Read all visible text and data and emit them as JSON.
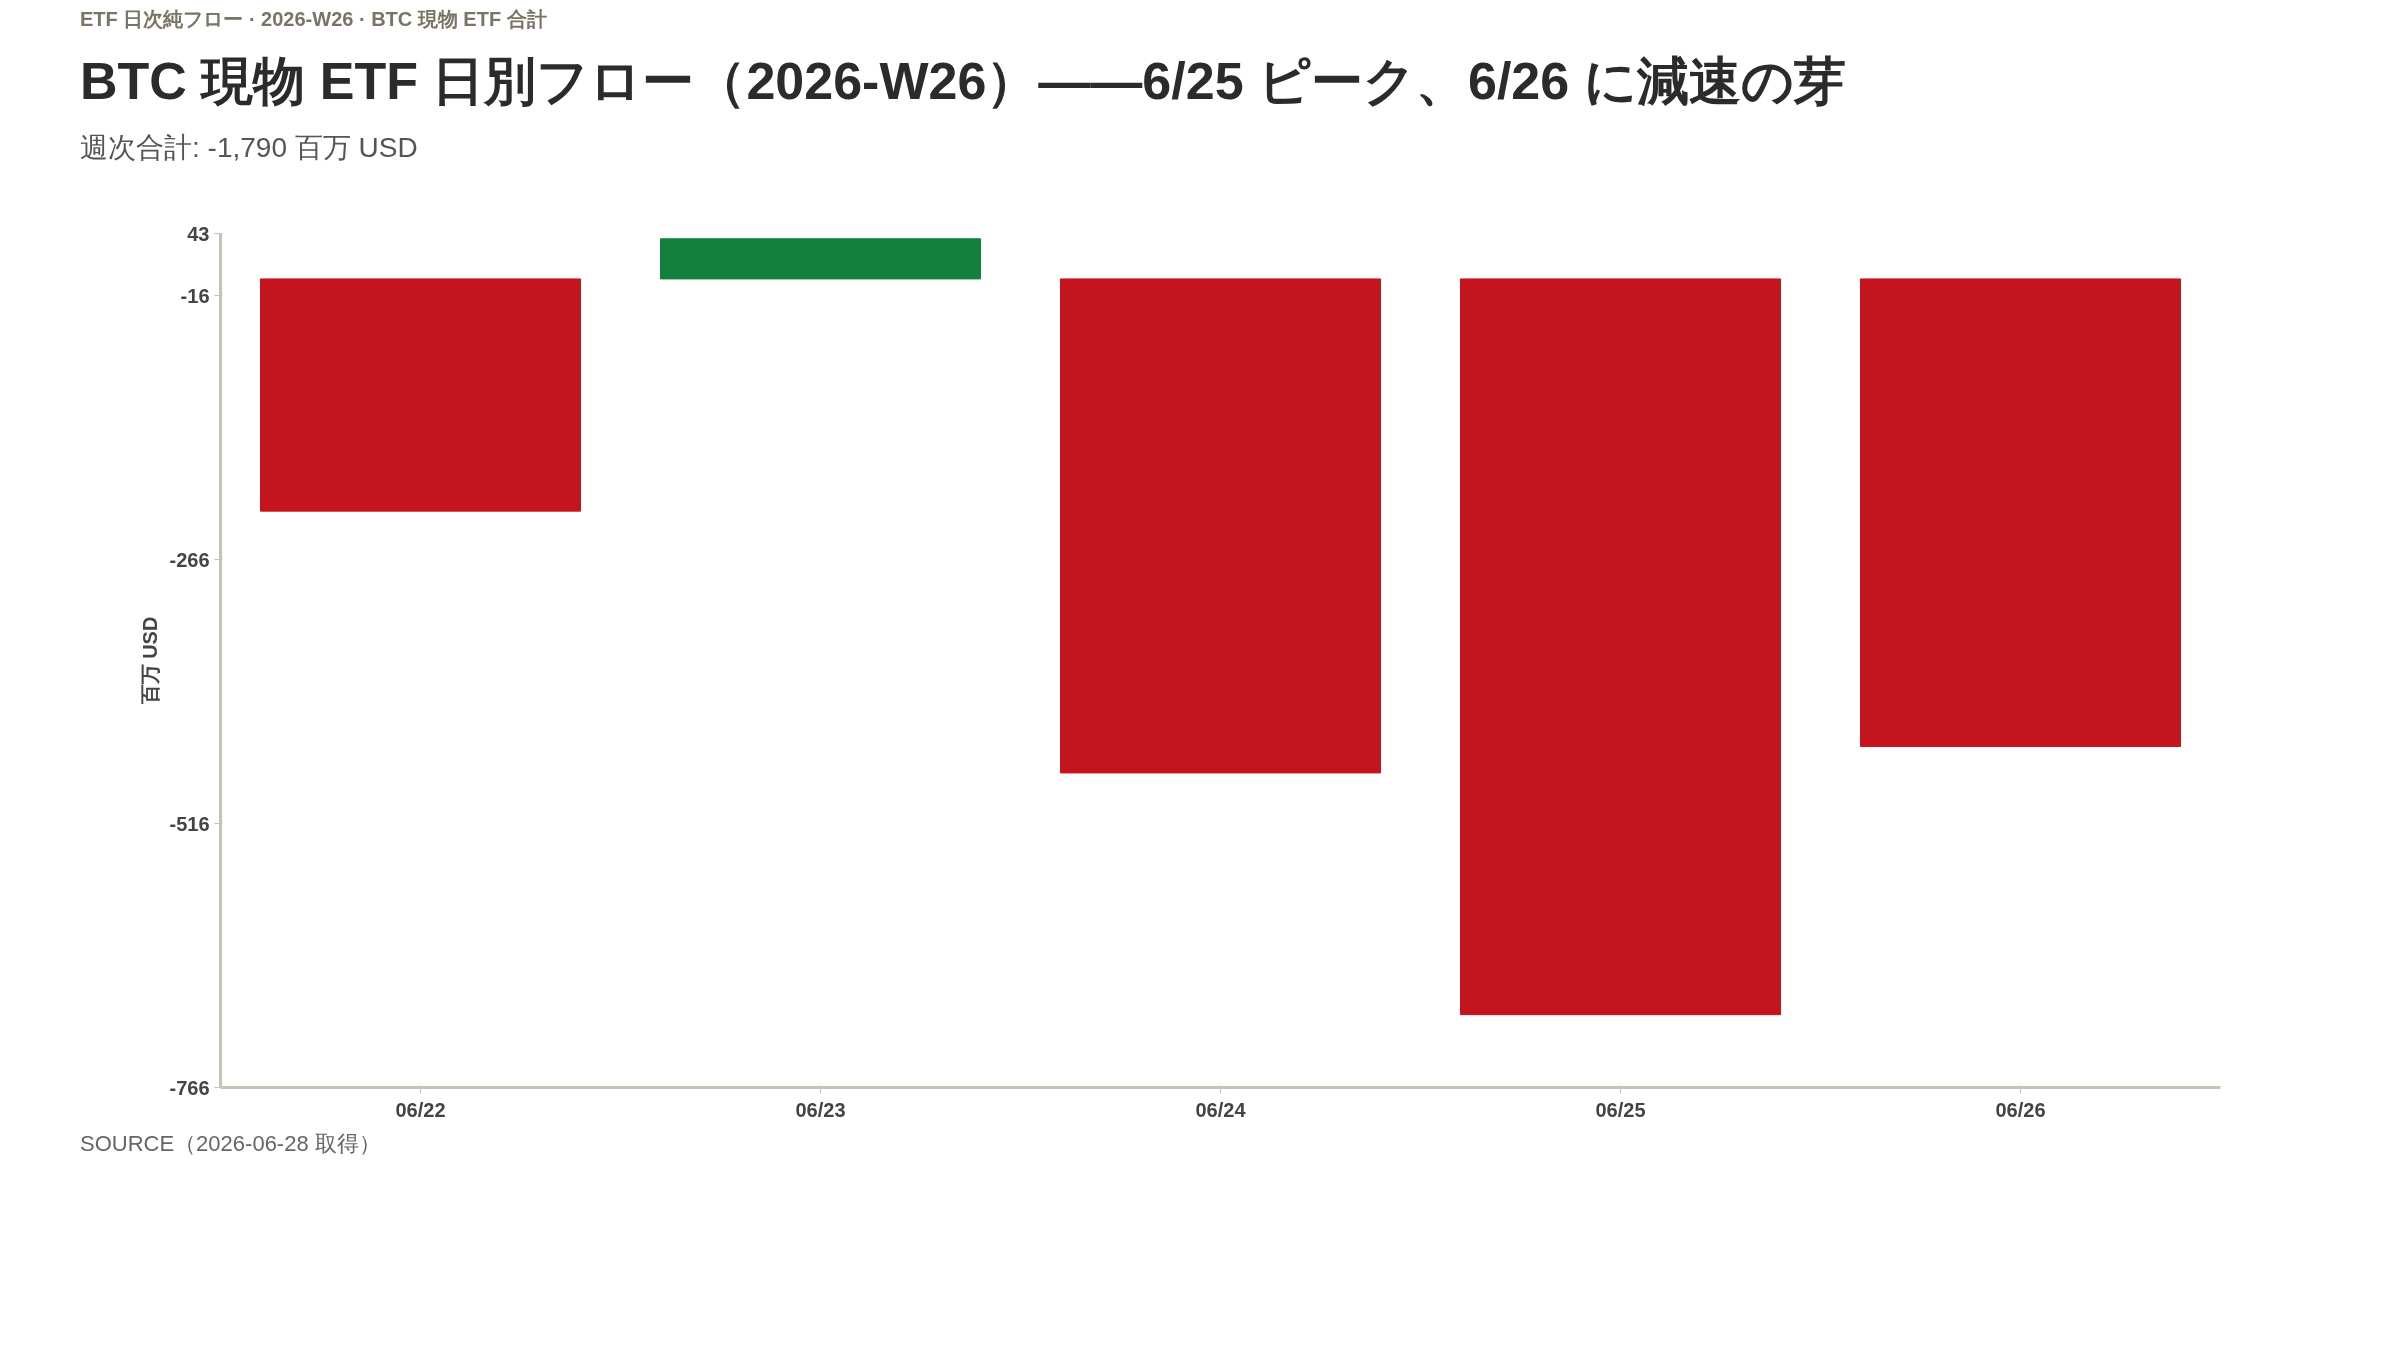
{
  "chart_data": {
    "type": "bar",
    "title": "BTC 現物 ETF 日別フロー（2026-W26）——6/25 ピーク、6/26 に減速の芽",
    "subtitle": "週次合計: -1,790 百万 USD",
    "ylabel": "百万 USD",
    "categories": [
      "06/22",
      "06/23",
      "06/24",
      "06/25",
      "06/26"
    ],
    "values": [
      -220,
      38,
      -468,
      -697,
      -443
    ],
    "colors": [
      "#c4151f",
      "#12803c",
      "#c4151f",
      "#c4151f",
      "#c4151f"
    ],
    "ylim": [
      -766,
      43
    ],
    "yticks": [
      43,
      -16,
      -266,
      -516,
      -766
    ],
    "grid": false,
    "annotations": [
      "ETF 日次純フロー · 2026-W26 · BTC 現物 ETF 合計",
      "SOURCE（2026-06-28 取得）"
    ]
  }
}
